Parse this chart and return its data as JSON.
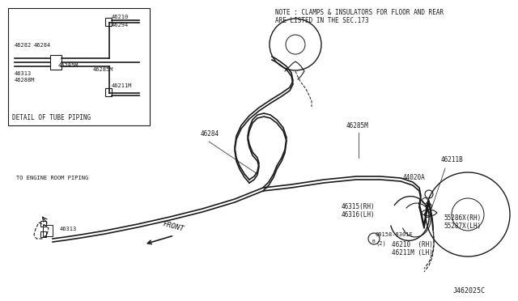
{
  "bg_color": "#ffffff",
  "line_color": "#1a1a1a",
  "title": "J462025C",
  "note1": "NOTE : CLAMPS & INSULATORS FOR FLOOR AND REAR",
  "note2": "ARE LISTED IN THE SEC.173",
  "detail_title": "DETAIL OF TUBE PIPING",
  "front_label": "FRONT"
}
